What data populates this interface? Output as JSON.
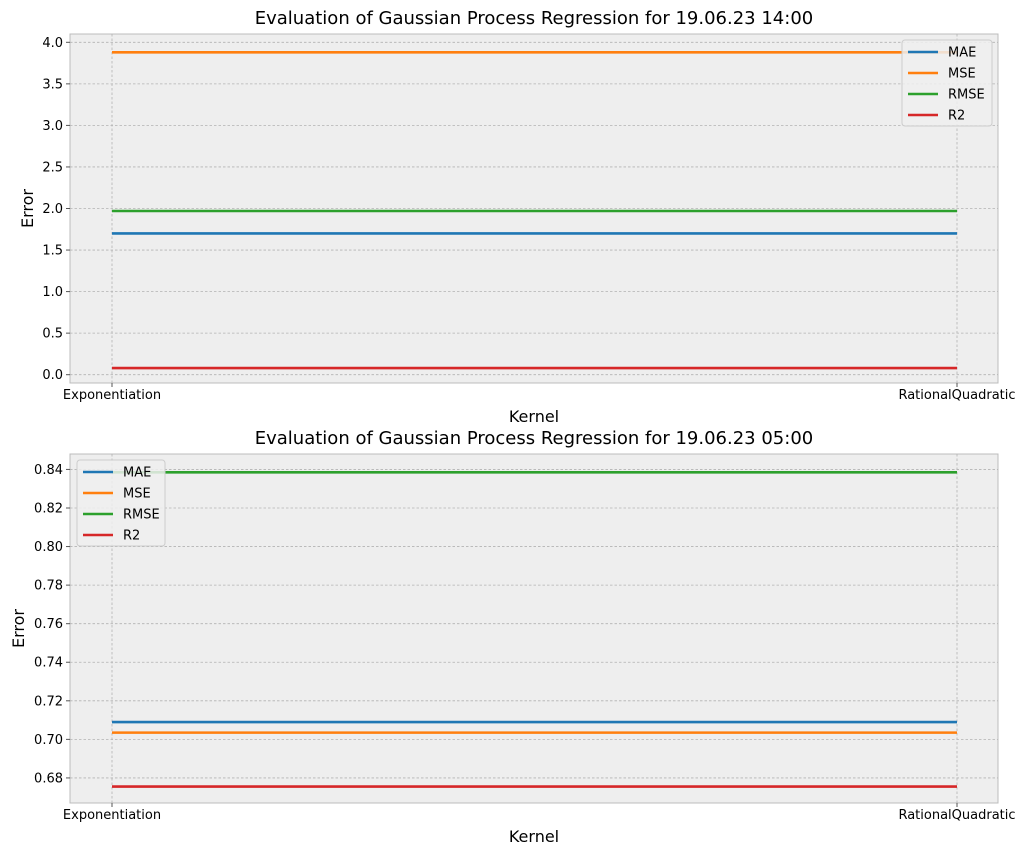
{
  "chart_data": [
    {
      "type": "line",
      "title": "Evaluation of Gaussian Process Regression for 19.06.23 14:00",
      "xlabel": "Kernel",
      "ylabel": "Error",
      "categories": [
        "Exponentiation",
        "RationalQuadratic"
      ],
      "ylim": [
        -0.1,
        4.1
      ],
      "yticks": [
        0.0,
        0.5,
        1.0,
        1.5,
        2.0,
        2.5,
        3.0,
        3.5,
        4.0
      ],
      "ytick_labels": [
        "0.0",
        "0.5",
        "1.0",
        "1.5",
        "2.0",
        "2.5",
        "3.0",
        "3.5",
        "4.0"
      ],
      "grid": true,
      "legend_position": "top-right",
      "series": [
        {
          "name": "MAE",
          "color": "#1f77b4",
          "values": [
            1.7,
            1.7
          ]
        },
        {
          "name": "MSE",
          "color": "#ff7f0e",
          "values": [
            3.88,
            3.88
          ]
        },
        {
          "name": "RMSE",
          "color": "#2ca02c",
          "values": [
            1.97,
            1.97
          ]
        },
        {
          "name": "R2",
          "color": "#d62728",
          "values": [
            0.08,
            0.08
          ]
        }
      ]
    },
    {
      "type": "line",
      "title": "Evaluation of Gaussian Process Regression for 19.06.23 05:00",
      "xlabel": "Kernel",
      "ylabel": "Error",
      "categories": [
        "Exponentiation",
        "RationalQuadratic"
      ],
      "ylim": [
        0.667,
        0.848
      ],
      "yticks": [
        0.68,
        0.7,
        0.72,
        0.74,
        0.76,
        0.78,
        0.8,
        0.82,
        0.84
      ],
      "ytick_labels": [
        "0.68",
        "0.70",
        "0.72",
        "0.74",
        "0.76",
        "0.78",
        "0.80",
        "0.82",
        "0.84"
      ],
      "grid": true,
      "legend_position": "top-left",
      "series": [
        {
          "name": "MAE",
          "color": "#1f77b4",
          "values": [
            0.709,
            0.709
          ]
        },
        {
          "name": "MSE",
          "color": "#ff7f0e",
          "values": [
            0.7035,
            0.7035
          ]
        },
        {
          "name": "RMSE",
          "color": "#2ca02c",
          "values": [
            0.8385,
            0.8385
          ]
        },
        {
          "name": "R2",
          "color": "#d62728",
          "values": [
            0.6755,
            0.6755
          ]
        }
      ]
    }
  ]
}
